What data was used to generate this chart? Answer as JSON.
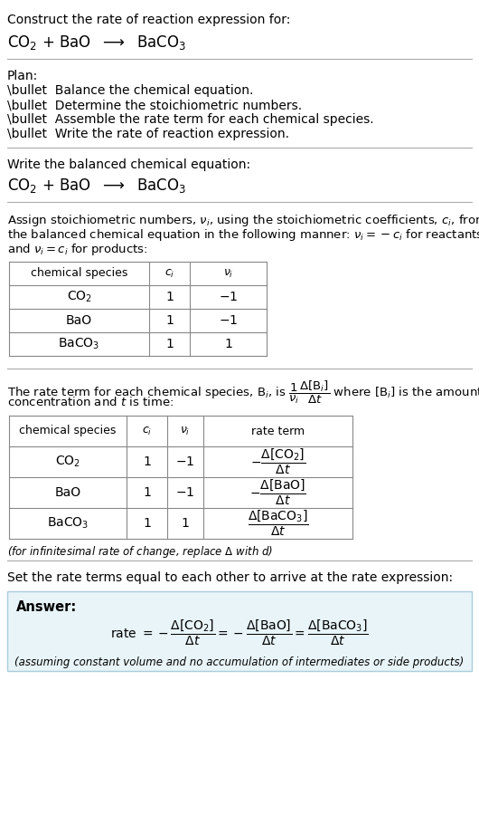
{
  "bg_color": "#ffffff",
  "text_color": "#000000",
  "answer_bg": "#e8f4f8",
  "section1_title": "Construct the rate of reaction expression for:",
  "section1_reaction": "CO$_2$ + BaO  $\\longrightarrow$  BaCO$_3$",
  "plan_header": "Plan:",
  "plan_items": [
    "\\bullet  Balance the chemical equation.",
    "\\bullet  Determine the stoichiometric numbers.",
    "\\bullet  Assemble the rate term for each chemical species.",
    "\\bullet  Write the rate of reaction expression."
  ],
  "balanced_header": "Write the balanced chemical equation:",
  "balanced_eq": "CO$_2$ + BaO  $\\longrightarrow$  BaCO$_3$",
  "stoich_intro": "Assign stoichiometric numbers, $\\nu_i$, using the stoichiometric coefficients, $c_i$, from\nthe balanced chemical equation in the following manner: $\\nu_i = -c_i$ for reactants\nand $\\nu_i = c_i$ for products:",
  "table1_headers": [
    "chemical species",
    "$c_i$",
    "$\\nu_i$"
  ],
  "table1_rows": [
    [
      "CO$_2$",
      "1",
      "$-1$"
    ],
    [
      "BaO",
      "1",
      "$-1$"
    ],
    [
      "BaCO$_3$",
      "1",
      "1"
    ]
  ],
  "rate_intro": "The rate term for each chemical species, B$_i$, is $\\dfrac{1}{\\nu_i}\\dfrac{\\Delta[\\mathrm{B}_i]}{\\Delta t}$ where [B$_i$] is the amount\nconcentration and $t$ is time:",
  "table2_headers": [
    "chemical species",
    "$c_i$",
    "$\\nu_i$",
    "rate term"
  ],
  "table2_rows": [
    [
      "CO$_2$",
      "1",
      "$-1$",
      "$-\\dfrac{\\Delta[\\mathrm{CO_2}]}{\\Delta t}$"
    ],
    [
      "BaO",
      "1",
      "$-1$",
      "$-\\dfrac{\\Delta[\\mathrm{BaO}]}{\\Delta t}$"
    ],
    [
      "BaCO$_3$",
      "1",
      "1",
      "$\\dfrac{\\Delta[\\mathrm{BaCO_3}]}{\\Delta t}$"
    ]
  ],
  "infinitesimal_note": "(for infinitesimal rate of change, replace $\\Delta$ with $d$)",
  "set_equal_text": "Set the rate terms equal to each other to arrive at the rate expression:",
  "answer_label": "Answer:",
  "answer_rate": "rate $= -\\dfrac{\\Delta[\\mathrm{CO_2}]}{\\Delta t} = -\\dfrac{\\Delta[\\mathrm{BaO}]}{\\Delta t} = \\dfrac{\\Delta[\\mathrm{BaCO_3}]}{\\Delta t}$",
  "answer_note": "(assuming constant volume and no accumulation of intermediates or side products)"
}
